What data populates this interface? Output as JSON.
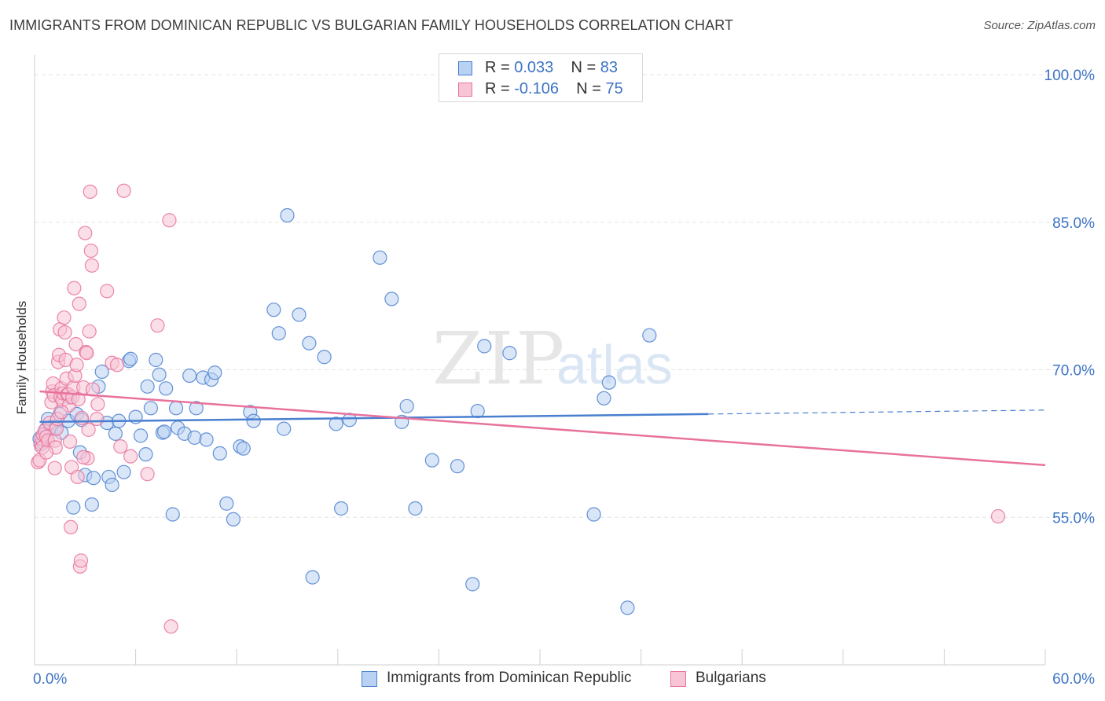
{
  "header": {
    "title": "IMMIGRANTS FROM DOMINICAN REPUBLIC VS BULGARIAN FAMILY HOUSEHOLDS CORRELATION CHART",
    "source": "Source: ZipAtlas.com"
  },
  "watermark": {
    "zip": "ZIP",
    "atlas": "atlas"
  },
  "legend_top": {
    "rows": [
      {
        "r_label": "R = ",
        "r_value": "0.033",
        "n_label": "N = ",
        "n_value": "83"
      },
      {
        "r_label": "R = ",
        "r_value": "-0.106",
        "n_label": "N = ",
        "n_value": "75"
      }
    ]
  },
  "chart_data": {
    "type": "scatter",
    "title": "IMMIGRANTS FROM DOMINICAN REPUBLIC VS BULGARIAN FAMILY HOUSEHOLDS CORRELATION CHART",
    "xlabel": "",
    "ylabel": "Family Households",
    "xlim": [
      0,
      60
    ],
    "ylim": [
      40,
      102
    ],
    "x_tick_labels": [
      "0.0%",
      "60.0%"
    ],
    "y_ticks": [
      55,
      70,
      85,
      100
    ],
    "y_tick_labels": [
      "55.0%",
      "70.0%",
      "85.0%",
      "100.0%"
    ],
    "grid": true,
    "colors": {
      "blue": "#4a7fd0",
      "blue_fill": "#b9d1f2",
      "pink": "#e8729c",
      "pink_fill": "#f7c5d6",
      "axis_label": "#3d74c4"
    },
    "series": [
      {
        "name": "Immigrants from Dominican Republic",
        "color": "#4a7fd0",
        "r": 0.033,
        "n": 83,
        "trend": {
          "x0": 0.3,
          "y0": 64.7,
          "x1": 40.0,
          "y1": 65.5,
          "dash_to_x": 60.0,
          "dash_to_y": 65.9
        },
        "points": [
          [
            0.3,
            63.0
          ],
          [
            0.4,
            62.5
          ],
          [
            0.5,
            62.6
          ],
          [
            0.6,
            63.5
          ],
          [
            0.7,
            64.0
          ],
          [
            0.8,
            65.0
          ],
          [
            1.0,
            64.2
          ],
          [
            1.2,
            64.0
          ],
          [
            1.5,
            65.5
          ],
          [
            1.6,
            63.6
          ],
          [
            2.0,
            64.8
          ],
          [
            2.1,
            67.2
          ],
          [
            2.3,
            56.0
          ],
          [
            2.5,
            65.5
          ],
          [
            2.7,
            61.6
          ],
          [
            2.8,
            64.9
          ],
          [
            3.0,
            59.3
          ],
          [
            3.4,
            56.3
          ],
          [
            3.5,
            59.0
          ],
          [
            3.8,
            68.3
          ],
          [
            4.0,
            69.8
          ],
          [
            4.3,
            64.6
          ],
          [
            4.4,
            59.1
          ],
          [
            4.6,
            58.3
          ],
          [
            4.8,
            63.5
          ],
          [
            5.0,
            64.8
          ],
          [
            5.3,
            59.6
          ],
          [
            5.6,
            70.9
          ],
          [
            5.7,
            71.1
          ],
          [
            6.0,
            65.2
          ],
          [
            6.3,
            63.3
          ],
          [
            6.6,
            61.4
          ],
          [
            6.7,
            68.3
          ],
          [
            6.9,
            66.1
          ],
          [
            7.2,
            71.0
          ],
          [
            7.4,
            69.5
          ],
          [
            7.6,
            63.6
          ],
          [
            7.7,
            63.7
          ],
          [
            7.8,
            68.1
          ],
          [
            8.2,
            55.3
          ],
          [
            8.4,
            66.1
          ],
          [
            8.5,
            64.1
          ],
          [
            8.9,
            63.5
          ],
          [
            9.2,
            69.4
          ],
          [
            9.6,
            66.1
          ],
          [
            9.5,
            63.1
          ],
          [
            10.0,
            69.2
          ],
          [
            10.2,
            62.9
          ],
          [
            10.5,
            69.0
          ],
          [
            10.7,
            69.7
          ],
          [
            11.0,
            61.5
          ],
          [
            11.4,
            56.4
          ],
          [
            11.8,
            54.8
          ],
          [
            12.2,
            62.2
          ],
          [
            12.4,
            62.0
          ],
          [
            12.8,
            65.7
          ],
          [
            13.0,
            64.8
          ],
          [
            14.2,
            76.1
          ],
          [
            14.5,
            73.7
          ],
          [
            14.8,
            64.0
          ],
          [
            15.0,
            85.7
          ],
          [
            15.7,
            75.6
          ],
          [
            16.3,
            72.7
          ],
          [
            16.5,
            48.9
          ],
          [
            17.2,
            71.3
          ],
          [
            17.9,
            64.5
          ],
          [
            18.2,
            55.9
          ],
          [
            18.7,
            64.9
          ],
          [
            20.5,
            81.4
          ],
          [
            21.2,
            77.2
          ],
          [
            21.8,
            64.7
          ],
          [
            22.1,
            66.3
          ],
          [
            22.6,
            55.9
          ],
          [
            23.6,
            60.8
          ],
          [
            25.1,
            60.2
          ],
          [
            26.0,
            48.2
          ],
          [
            26.3,
            65.8
          ],
          [
            26.7,
            72.4
          ],
          [
            28.2,
            71.7
          ],
          [
            33.2,
            55.3
          ],
          [
            33.8,
            67.1
          ],
          [
            34.1,
            68.7
          ],
          [
            35.2,
            45.8
          ],
          [
            36.5,
            73.5
          ]
        ]
      },
      {
        "name": "Bulgarians",
        "color": "#e8729c",
        "r": -0.106,
        "n": 75,
        "trend": {
          "x0": 0.3,
          "y0": 67.8,
          "x1": 60.0,
          "y1": 60.3
        },
        "points": [
          [
            0.2,
            60.6
          ],
          [
            0.3,
            60.8
          ],
          [
            0.35,
            62.4
          ],
          [
            0.4,
            63.0
          ],
          [
            0.45,
            62.1
          ],
          [
            0.5,
            63.4
          ],
          [
            0.6,
            63.8
          ],
          [
            0.7,
            63.2
          ],
          [
            0.8,
            62.8
          ],
          [
            0.9,
            64.6
          ],
          [
            1.0,
            66.7
          ],
          [
            1.05,
            67.8
          ],
          [
            1.1,
            68.6
          ],
          [
            1.15,
            67.4
          ],
          [
            1.2,
            62.8
          ],
          [
            1.25,
            62.1
          ],
          [
            1.3,
            64.0
          ],
          [
            1.35,
            65.0
          ],
          [
            1.4,
            70.8
          ],
          [
            1.45,
            71.5
          ],
          [
            1.5,
            74.1
          ],
          [
            1.55,
            67.2
          ],
          [
            1.6,
            68.1
          ],
          [
            1.65,
            66.9
          ],
          [
            1.7,
            67.6
          ],
          [
            1.75,
            75.3
          ],
          [
            1.8,
            73.8
          ],
          [
            1.85,
            71.0
          ],
          [
            1.9,
            69.1
          ],
          [
            1.95,
            67.5
          ],
          [
            2.0,
            67.5
          ],
          [
            2.05,
            66.4
          ],
          [
            2.1,
            62.7
          ],
          [
            2.15,
            54.0
          ],
          [
            2.2,
            60.1
          ],
          [
            2.25,
            67.2
          ],
          [
            2.3,
            68.2
          ],
          [
            2.35,
            78.3
          ],
          [
            2.4,
            69.4
          ],
          [
            2.45,
            72.6
          ],
          [
            2.5,
            70.5
          ],
          [
            2.55,
            59.1
          ],
          [
            2.6,
            67.0
          ],
          [
            2.65,
            76.7
          ],
          [
            2.7,
            50.0
          ],
          [
            2.75,
            50.6
          ],
          [
            2.8,
            65.1
          ],
          [
            2.9,
            68.2
          ],
          [
            3.0,
            83.9
          ],
          [
            3.05,
            71.8
          ],
          [
            3.1,
            71.7
          ],
          [
            3.15,
            61.0
          ],
          [
            3.2,
            63.9
          ],
          [
            3.25,
            73.9
          ],
          [
            3.3,
            88.1
          ],
          [
            3.35,
            82.1
          ],
          [
            3.4,
            80.6
          ],
          [
            3.45,
            68.0
          ],
          [
            3.7,
            65.0
          ],
          [
            3.75,
            66.5
          ],
          [
            4.3,
            78.0
          ],
          [
            4.6,
            70.7
          ],
          [
            4.9,
            70.5
          ],
          [
            5.1,
            62.2
          ],
          [
            5.3,
            88.2
          ],
          [
            5.7,
            61.2
          ],
          [
            6.7,
            59.4
          ],
          [
            7.3,
            74.5
          ],
          [
            8.0,
            85.2
          ],
          [
            8.1,
            43.9
          ],
          [
            1.2,
            60.0
          ],
          [
            0.7,
            61.6
          ],
          [
            2.9,
            61.1
          ],
          [
            1.6,
            65.7
          ],
          [
            57.2,
            55.1
          ]
        ]
      }
    ]
  },
  "legend_bottom": {
    "items": [
      "Immigrants from Dominican Republic",
      "Bulgarians"
    ]
  }
}
